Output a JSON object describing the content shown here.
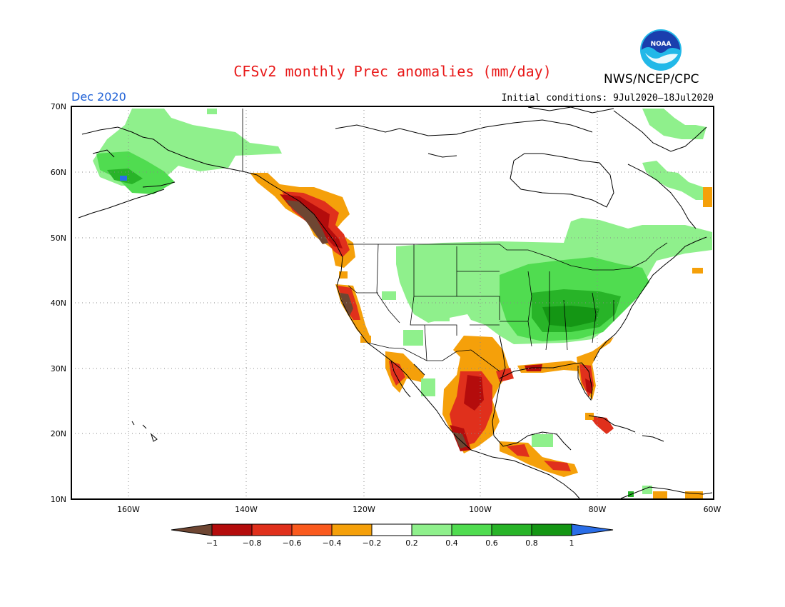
{
  "title": "CFSv2 monthly Prec anomalies (mm/day)",
  "org": "NWS/NCEP/CPC",
  "month_label": "Dec 2020",
  "initial_conditions": "Initial conditions: 9Jul2020–18Jul2020",
  "logo_text": "NOAA",
  "lat_labels": [
    "70N",
    "60N",
    "50N",
    "40N",
    "30N",
    "20N",
    "10N"
  ],
  "lon_labels": [
    "160W",
    "140W",
    "120W",
    "100W",
    "80W",
    "60W"
  ],
  "colorbar": {
    "labels": [
      "−1",
      "−0.8",
      "−0.6",
      "−0.4",
      "−0.2",
      "0.2",
      "0.4",
      "0.6",
      "0.8",
      "1"
    ],
    "colors": [
      "#6e4632",
      "#b40c0c",
      "#e0301c",
      "#fa5a1e",
      "#f5a00a",
      "#ffffff",
      "#8ff08c",
      "#50dc50",
      "#28b428",
      "#149614",
      "#2a6ee8"
    ]
  },
  "colors": {
    "title": "#e81818",
    "month": "#1c5fd6",
    "noaa_blue": "#1a3fae",
    "noaa_cyan": "#22b8e8"
  }
}
